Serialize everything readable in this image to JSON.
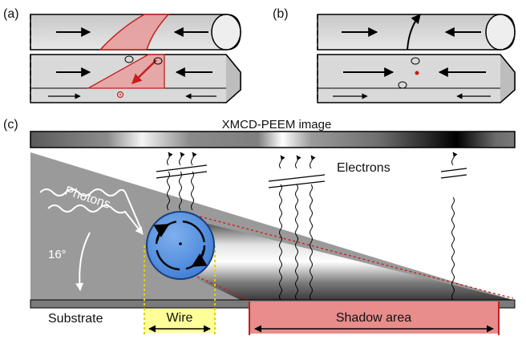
{
  "panels": {
    "a": "(a)",
    "b": "(b)",
    "c": "(c)"
  },
  "labels": {
    "xmcd_image": "XMCD-PEEM image",
    "electrons": "Electrons",
    "photons": "Photons",
    "angle": "16°",
    "substrate": "Substrate",
    "wire": "Wire",
    "shadow_area": "Shadow area"
  },
  "colors": {
    "wire_body": "#d9d9d9",
    "domain_wall": "#e8898a",
    "domain_wall_edge": "#c21f1f",
    "wire_circle": "#4f8fe0",
    "wire_highlight": "#ffff99",
    "shadow_highlight": "#e88c8c",
    "substrate": "#9a9a9a"
  }
}
